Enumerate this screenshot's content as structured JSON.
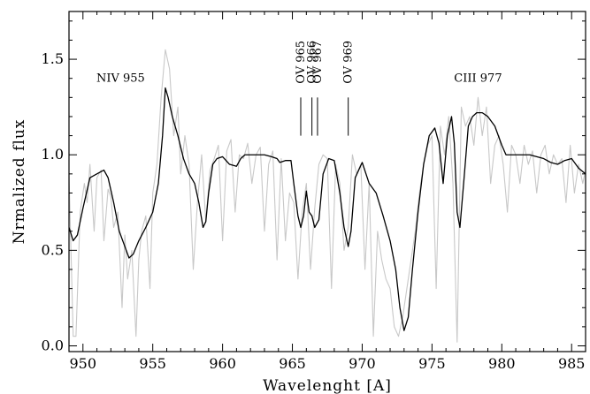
{
  "chart_data": {
    "type": "line",
    "xlabel": "Wavelenght [A]",
    "ylabel": "Nrmalized flux",
    "xlim": [
      949,
      986
    ],
    "ylim": [
      -0.03,
      1.75
    ],
    "x_ticks": [
      950,
      955,
      960,
      965,
      970,
      975,
      980,
      985
    ],
    "y_ticks": [
      0.0,
      0.5,
      1.0,
      1.5
    ],
    "x_tick_labels": [
      "950",
      "955",
      "960",
      "965",
      "970",
      "975",
      "980",
      "985"
    ],
    "y_tick_labels": [
      "0.0",
      "0.5",
      "1.0",
      "1.5"
    ],
    "grid": false,
    "legend": "none",
    "annotations": [
      {
        "text": "NIV 955",
        "x": 952.7,
        "y": 1.4,
        "orientation": "horizontal"
      },
      {
        "text": "CIII 977",
        "x": 978.3,
        "y": 1.4,
        "orientation": "horizontal"
      },
      {
        "text": "OV 965",
        "x": 965.6,
        "y": 1.4,
        "orientation": "vertical",
        "marker": {
          "x": 965.6,
          "y_top": 1.3,
          "y_bottom": 1.1
        }
      },
      {
        "text": "OV 966",
        "x": 966.4,
        "y": 1.4,
        "orientation": "vertical",
        "marker": {
          "x": 966.4,
          "y_top": 1.3,
          "y_bottom": 1.1
        }
      },
      {
        "text": "OV 967",
        "x": 966.8,
        "y": 1.4,
        "orientation": "vertical",
        "marker": {
          "x": 966.8,
          "y_top": 1.3,
          "y_bottom": 1.1
        }
      },
      {
        "text": "OV 969",
        "x": 969.0,
        "y": 1.4,
        "orientation": "vertical",
        "marker": {
          "x": 969.0,
          "y_top": 1.3,
          "y_bottom": 1.1
        }
      }
    ],
    "series": [
      {
        "style": "observed",
        "color": "#c8c8c8",
        "x": [
          949.0,
          949.3,
          949.5,
          949.8,
          950.1,
          950.3,
          950.5,
          950.8,
          951.0,
          951.3,
          951.5,
          951.8,
          952.0,
          952.2,
          952.5,
          952.8,
          953.0,
          953.2,
          953.5,
          953.8,
          954.0,
          954.2,
          954.5,
          954.8,
          955.0,
          955.3,
          955.6,
          955.9,
          956.2,
          956.5,
          956.8,
          957.0,
          957.3,
          957.6,
          957.9,
          958.2,
          958.5,
          958.8,
          959.1,
          959.4,
          959.7,
          960.0,
          960.3,
          960.6,
          960.9,
          961.2,
          961.5,
          961.8,
          962.1,
          962.4,
          962.7,
          963.0,
          963.3,
          963.6,
          963.9,
          964.2,
          964.5,
          964.8,
          965.1,
          965.4,
          965.7,
          966.0,
          966.3,
          966.6,
          966.9,
          967.2,
          967.5,
          967.8,
          968.1,
          968.4,
          968.7,
          969.0,
          969.3,
          969.6,
          969.9,
          970.2,
          970.5,
          970.8,
          971.1,
          971.4,
          971.7,
          972.0,
          972.3,
          972.6,
          972.9,
          973.2,
          973.5,
          973.8,
          974.1,
          974.4,
          974.7,
          975.0,
          975.3,
          975.6,
          975.9,
          976.2,
          976.5,
          976.8,
          977.1,
          977.4,
          977.7,
          978.0,
          978.3,
          978.6,
          978.9,
          979.2,
          979.5,
          979.8,
          980.1,
          980.4,
          980.7,
          981.0,
          981.3,
          981.6,
          981.9,
          982.2,
          982.5,
          982.8,
          983.1,
          983.4,
          983.7,
          984.0,
          984.3,
          984.6,
          984.9,
          985.2,
          985.5,
          985.8,
          986.0
        ],
        "y": [
          0.9,
          0.05,
          0.05,
          0.7,
          0.85,
          0.75,
          0.95,
          0.6,
          0.88,
          0.92,
          0.55,
          0.82,
          0.78,
          0.62,
          0.7,
          0.2,
          0.58,
          0.35,
          0.5,
          0.05,
          0.45,
          0.6,
          0.68,
          0.3,
          0.8,
          0.95,
          1.3,
          1.55,
          1.45,
          1.1,
          1.25,
          0.9,
          1.1,
          0.95,
          0.4,
          0.75,
          1.0,
          0.65,
          0.92,
          0.98,
          1.05,
          0.55,
          1.02,
          1.08,
          0.7,
          1.0,
          0.98,
          1.06,
          0.85,
          1.0,
          1.04,
          0.6,
          0.95,
          1.02,
          0.45,
          0.98,
          0.55,
          0.8,
          0.75,
          0.35,
          0.7,
          0.85,
          0.4,
          0.72,
          0.95,
          1.0,
          0.98,
          0.3,
          0.95,
          0.85,
          0.5,
          0.62,
          1.0,
          0.9,
          0.95,
          0.4,
          0.85,
          0.05,
          0.6,
          0.45,
          0.35,
          0.3,
          0.1,
          0.05,
          0.15,
          0.3,
          0.45,
          0.6,
          0.8,
          0.95,
          1.05,
          1.1,
          0.3,
          1.15,
          1.0,
          1.2,
          0.85,
          0.02,
          1.25,
          1.15,
          1.2,
          1.05,
          1.3,
          1.1,
          1.25,
          0.85,
          1.05,
          1.1,
          0.95,
          0.7,
          1.05,
          1.0,
          0.85,
          1.05,
          0.95,
          1.02,
          0.8,
          1.0,
          1.05,
          0.9,
          1.0,
          0.95,
          0.98,
          0.75,
          1.05,
          0.8,
          0.95,
          0.85,
          0.92
        ]
      },
      {
        "style": "model",
        "color": "#000000",
        "x": [
          949.0,
          949.3,
          949.6,
          950.0,
          950.5,
          951.0,
          951.5,
          951.8,
          952.2,
          952.6,
          953.0,
          953.3,
          953.6,
          954.0,
          954.5,
          955.0,
          955.4,
          955.7,
          955.9,
          956.1,
          956.4,
          956.8,
          957.2,
          957.6,
          958.0,
          958.3,
          958.6,
          958.8,
          959.0,
          959.3,
          959.6,
          960.0,
          960.5,
          961.0,
          961.3,
          961.6,
          961.9,
          962.3,
          963.0,
          963.5,
          963.9,
          964.1,
          964.5,
          964.9,
          965.1,
          965.4,
          965.6,
          965.8,
          966.0,
          966.2,
          966.4,
          966.6,
          966.9,
          967.2,
          967.6,
          968.0,
          968.4,
          968.7,
          969.0,
          969.2,
          969.5,
          970.0,
          970.5,
          971.0,
          971.5,
          972.0,
          972.4,
          972.7,
          973.0,
          973.3,
          973.6,
          974.0,
          974.4,
          974.8,
          975.2,
          975.5,
          975.8,
          976.1,
          976.4,
          976.6,
          976.8,
          977.0,
          977.3,
          977.6,
          977.9,
          978.2,
          978.6,
          979.0,
          979.5,
          980.0,
          980.3,
          980.6,
          981.0,
          981.5,
          982.0,
          982.5,
          983.0,
          983.5,
          984.0,
          984.5,
          985.0,
          985.5,
          986.0
        ],
        "y": [
          0.62,
          0.55,
          0.58,
          0.72,
          0.88,
          0.9,
          0.92,
          0.88,
          0.75,
          0.6,
          0.52,
          0.46,
          0.48,
          0.55,
          0.62,
          0.7,
          0.85,
          1.1,
          1.35,
          1.3,
          1.2,
          1.1,
          0.98,
          0.9,
          0.85,
          0.75,
          0.62,
          0.65,
          0.8,
          0.95,
          0.98,
          0.99,
          0.95,
          0.94,
          0.98,
          1.0,
          1.0,
          1.0,
          1.0,
          0.99,
          0.98,
          0.96,
          0.97,
          0.97,
          0.85,
          0.68,
          0.62,
          0.68,
          0.81,
          0.7,
          0.68,
          0.62,
          0.66,
          0.9,
          0.98,
          0.97,
          0.8,
          0.62,
          0.52,
          0.6,
          0.88,
          0.96,
          0.85,
          0.8,
          0.68,
          0.55,
          0.4,
          0.2,
          0.08,
          0.15,
          0.4,
          0.7,
          0.95,
          1.1,
          1.14,
          1.06,
          0.85,
          1.1,
          1.2,
          1.06,
          0.7,
          0.62,
          0.88,
          1.15,
          1.2,
          1.22,
          1.22,
          1.2,
          1.15,
          1.05,
          1.0,
          1.0,
          1.0,
          1.0,
          1.0,
          0.99,
          0.98,
          0.96,
          0.95,
          0.97,
          0.98,
          0.93,
          0.9
        ]
      }
    ]
  }
}
